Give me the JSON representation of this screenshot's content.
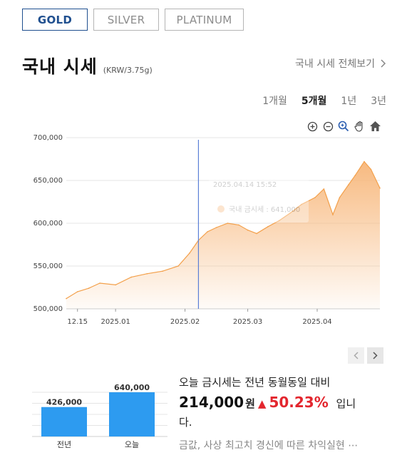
{
  "tabs": [
    {
      "label": "GOLD",
      "active": true
    },
    {
      "label": "SILVER",
      "active": false
    },
    {
      "label": "PLATINUM",
      "active": false
    }
  ],
  "header": {
    "title": "국내 시세",
    "unit": "(KRW/3.75g)",
    "view_all": "국내 시세 전체보기"
  },
  "periods": [
    {
      "label": "1개월",
      "active": false
    },
    {
      "label": "5개월",
      "active": true
    },
    {
      "label": "1년",
      "active": false
    },
    {
      "label": "3년",
      "active": false
    }
  ],
  "toolbar": [
    "zoom-in-icon",
    "zoom-out-icon",
    "zoom-select-icon",
    "pan-hand-icon",
    "home-icon"
  ],
  "tooltip": {
    "date": "2025.04.14 15:52",
    "label": "국내 금시세 : 641,000"
  },
  "colors": {
    "accent": "#1f4f8f",
    "line": "#f3a04b",
    "fill_top": "#f7b679",
    "bar": "#2d9bf0",
    "up": "#e3262e",
    "crosshair": "#5b7fd6"
  },
  "chart_data": [
    {
      "type": "area",
      "title": "",
      "x": [
        "2024.12.10",
        "2024.12.15",
        "2024.12.20",
        "2024.12.25",
        "2025.01.01",
        "2025.01.08",
        "2025.01.15",
        "2025.01.22",
        "2025.01.29",
        "2025.02.03",
        "2025.02.07",
        "2025.02.11",
        "2025.02.15",
        "2025.02.20",
        "2025.02.25",
        "2025.03.01",
        "2025.03.05",
        "2025.03.10",
        "2025.03.15",
        "2025.03.20",
        "2025.03.25",
        "2025.03.31",
        "2025.04.04",
        "2025.04.08",
        "2025.04.11",
        "2025.04.15",
        "2025.04.18",
        "2025.04.22",
        "2025.04.25",
        "2025.04.29"
      ],
      "series": [
        {
          "values": [
            512000,
            520000,
            524000,
            530000,
            528000,
            537000,
            541000,
            544000,
            550000,
            565000,
            580000,
            590000,
            595000,
            600000,
            598000,
            592000,
            588000,
            596000,
            603000,
            612000,
            622000,
            630000,
            640000,
            610000,
            630000,
            645000,
            656000,
            672000,
            663000,
            641000
          ]
        }
      ],
      "x_ticks": [
        "12.15",
        "2025.01",
        "2025.02",
        "2025.03",
        "2025.04"
      ],
      "y_ticks": [
        "500,000",
        "550,000",
        "600,000",
        "650,000",
        "700,000"
      ],
      "ylim": [
        500000,
        700000
      ],
      "grid": true
    },
    {
      "type": "bar",
      "categories": [
        "전년",
        "오늘"
      ],
      "values": [
        426000,
        640000
      ],
      "labels": [
        "426,000",
        "640,000"
      ]
    }
  ],
  "summary": {
    "line1": "오늘 금시세는 전년 동월동일 대비",
    "amount": "214,000",
    "won": "원",
    "up_arrow": "▲",
    "rate": "50.23%",
    "tail": "입니",
    "line3": "다.",
    "news": "금값, 사상 최고치 경신에 따른 차익실현 ⋯"
  },
  "nav": {
    "prev": "‹",
    "next": "›"
  }
}
